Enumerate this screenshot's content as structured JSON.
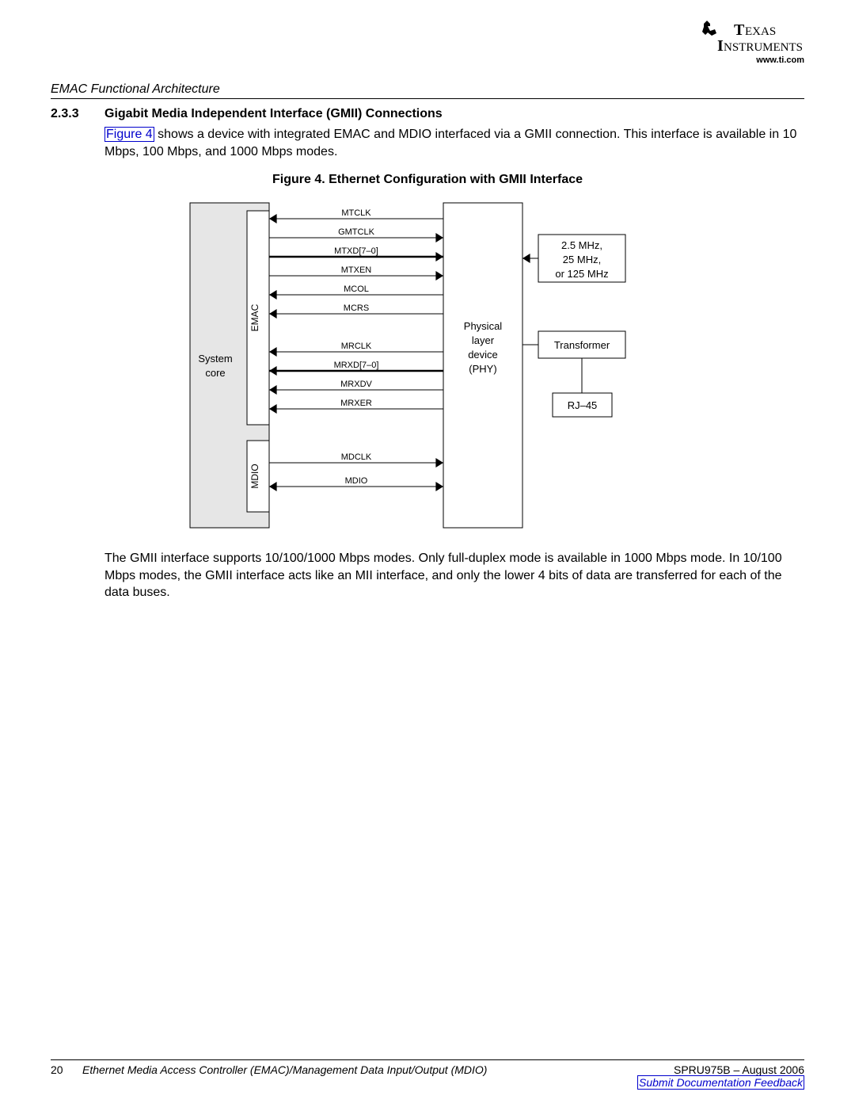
{
  "logo_url": "www.ti.com",
  "section_header": "EMAC Functional Architecture",
  "subsection_num": "2.3.3",
  "subsection_title": "Gigabit Media Independent Interface (GMII) Connections",
  "para1_a": "Figure 4",
  "para1_b": " shows a device with integrated EMAC and MDIO interfaced via a GMII connection. This interface is available in 10 Mbps, 100 Mbps, and 1000 Mbps modes.",
  "fig_title": "Figure 4. Ethernet Configuration with GMII Interface",
  "para2": "The GMII interface supports 10/100/1000 Mbps modes. Only full-duplex mode is available in 1000 Mbps mode. In 10/100 Mbps modes, the GMII interface acts like an MII interface, and only the lower 4 bits of data are transferred for each of the data buses.",
  "footer_page": "20",
  "footer_title": "Ethernet Media Access Controller (EMAC)/Management Data Input/Output (MDIO)",
  "footer_doc": "SPRU975B – August 2006",
  "footer_feedback": "Submit Documentation Feedback",
  "diagram": {
    "box_stroke": "#000000",
    "signal_font_size": 11,
    "block_font_size": 13,
    "vlabel_font_size": 12,
    "core_fill": "#e6e6e6",
    "core_label_1": "System",
    "core_label_2": "core",
    "emac_label": "EMAC",
    "mdio_label": "MDIO",
    "phy_label_1": "Physical",
    "phy_label_2": "layer",
    "phy_label_3": "device",
    "phy_label_4": "(PHY)",
    "clk_label_1": "2.5 MHz,",
    "clk_label_2": "25 MHz,",
    "clk_label_3": "or 125 MHz",
    "xfmr_label": "Transformer",
    "rj45_label": "RJ–45",
    "signals": [
      {
        "name": "MTCLK",
        "dir": "left",
        "weight": 1
      },
      {
        "name": "GMTCLK",
        "dir": "right",
        "weight": 1
      },
      {
        "name": "MTXD[7–0]",
        "dir": "right",
        "weight": 2
      },
      {
        "name": "MTXEN",
        "dir": "right",
        "weight": 1
      },
      {
        "name": "MCOL",
        "dir": "left",
        "weight": 1
      },
      {
        "name": "MCRS",
        "dir": "left",
        "weight": 1
      },
      {
        "name": "",
        "dir": "none",
        "weight": 0
      },
      {
        "name": "MRCLK",
        "dir": "left",
        "weight": 1
      },
      {
        "name": "MRXD[7–0]",
        "dir": "left",
        "weight": 2
      },
      {
        "name": "MRXDV",
        "dir": "left",
        "weight": 1
      },
      {
        "name": "MRXER",
        "dir": "left",
        "weight": 1
      }
    ],
    "mdio_signals": [
      {
        "name": "MDCLK",
        "dir": "right",
        "weight": 1
      },
      {
        "name": "MDIO",
        "dir": "both",
        "weight": 1
      }
    ]
  }
}
